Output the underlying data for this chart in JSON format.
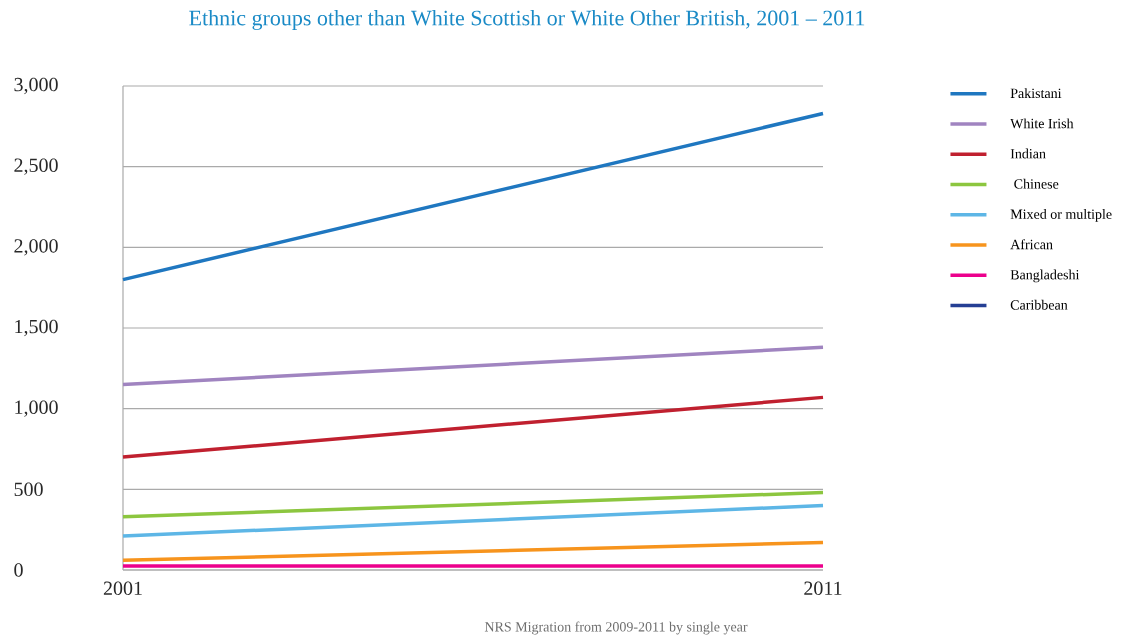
{
  "chart_data": {
    "type": "line",
    "title": "Ethnic groups other than White Scottish or White Other British, 2001 – 2011",
    "x": [
      2001,
      2011
    ],
    "xlim": [
      2001,
      2011
    ],
    "xticks": [
      2001,
      2011
    ],
    "ylim": [
      0,
      3000
    ],
    "yticks": [
      {
        "value": 0,
        "label": "0"
      },
      {
        "value": 500,
        "label": "500"
      },
      {
        "value": 1000,
        "label": "1,000"
      },
      {
        "value": 1500,
        "label": "1,500"
      },
      {
        "value": 2000,
        "label": "2,000"
      },
      {
        "value": 2500,
        "label": "2,500"
      },
      {
        "value": 3000,
        "label": "3,000"
      }
    ],
    "grid": "y",
    "legend": "right",
    "annotations": [
      "NRS Migration from 2009-2011 by single year"
    ],
    "series": [
      {
        "name": "Pakistani",
        "color": "#1f77c0",
        "values": [
          1800,
          2830
        ]
      },
      {
        "name": "White Irish",
        "color": "#a084c0",
        "values": [
          1150,
          1380
        ]
      },
      {
        "name": "Indian",
        "color": "#c0202f",
        "values": [
          700,
          1070
        ]
      },
      {
        "name": " Chinese",
        "color": "#8cc63f",
        "values": [
          330,
          480
        ]
      },
      {
        "name": "Mixed or multiple",
        "color": "#5db6e6",
        "values": [
          210,
          400
        ]
      },
      {
        "name": "African",
        "color": "#f7941d",
        "values": [
          60,
          170
        ]
      },
      {
        "name": "Bangladeshi",
        "color": "#ec008c",
        "values": [
          25,
          25
        ]
      },
      {
        "name": "Caribbean",
        "color": "#253f94",
        "values": [
          null,
          null
        ]
      }
    ]
  }
}
